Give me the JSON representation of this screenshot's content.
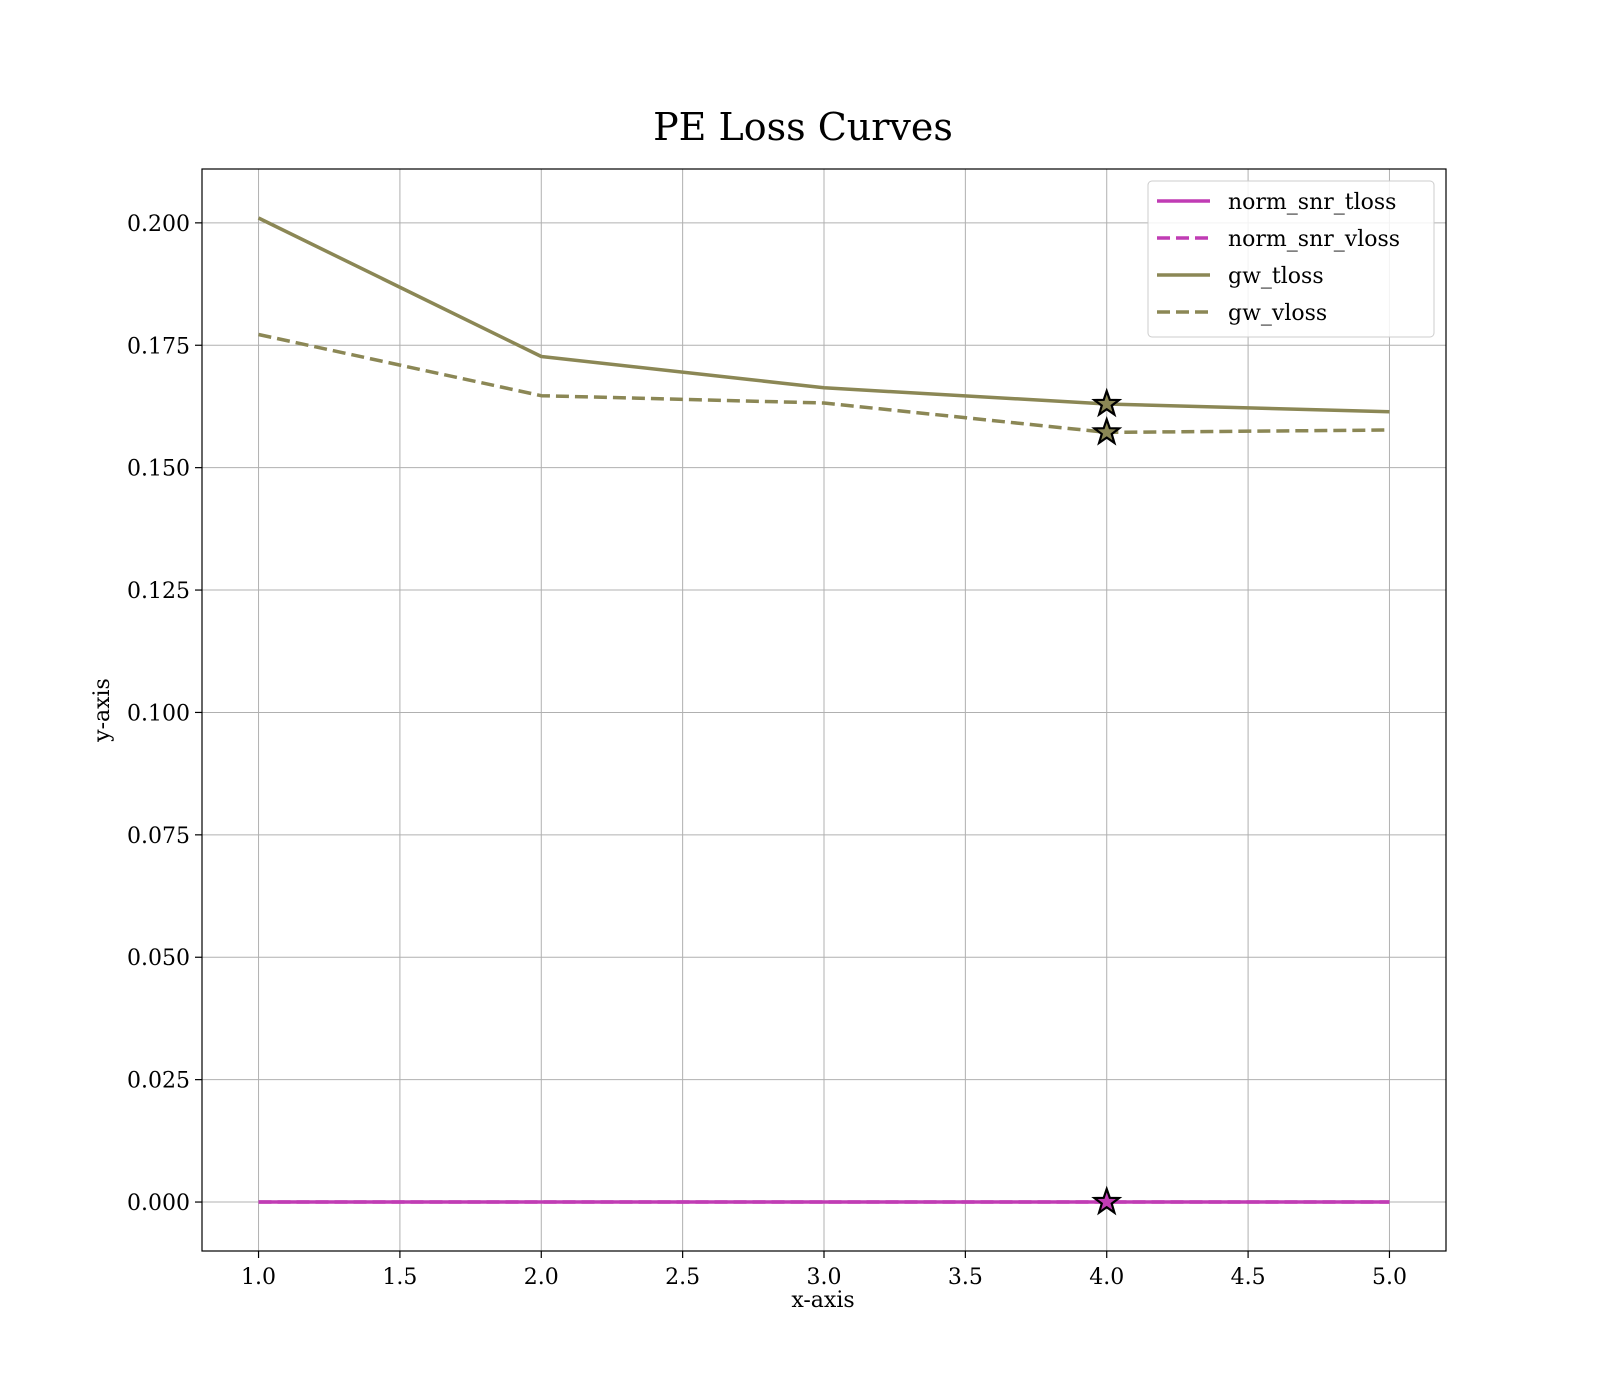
{
  "chart_data": {
    "type": "line",
    "title": "PE Loss Curves",
    "xlabel": "x-axis",
    "ylabel": "y-axis",
    "xlim": [
      0.8,
      5.2
    ],
    "ylim": [
      -0.01,
      0.211
    ],
    "xticks": [
      1.0,
      1.5,
      2.0,
      2.5,
      3.0,
      3.5,
      4.0,
      4.5,
      5.0
    ],
    "xtick_labels": [
      "1.0",
      "1.5",
      "2.0",
      "2.5",
      "3.0",
      "3.5",
      "4.0",
      "4.5",
      "5.0"
    ],
    "yticks": [
      0.0,
      0.025,
      0.05,
      0.075,
      0.1,
      0.125,
      0.15,
      0.175,
      0.2
    ],
    "ytick_labels": [
      "0.000",
      "0.025",
      "0.050",
      "0.075",
      "0.100",
      "0.125",
      "0.150",
      "0.175",
      "0.200"
    ],
    "grid": true,
    "legend_position": "top-right",
    "x": [
      1,
      2,
      3,
      4,
      5
    ],
    "series": [
      {
        "name": "norm_snr_tloss",
        "values": [
          0.0,
          0.0,
          0.0,
          0.0,
          0.0
        ],
        "color": "#c03cb4",
        "style": "solid"
      },
      {
        "name": "norm_snr_vloss",
        "values": [
          0.0,
          0.0,
          0.0,
          0.0,
          0.0
        ],
        "color": "#c03cb4",
        "style": "dashed"
      },
      {
        "name": "gw_tloss",
        "values": [
          0.201,
          0.1727,
          0.1663,
          0.163,
          0.1614
        ],
        "color": "#8b8755",
        "style": "solid"
      },
      {
        "name": "gw_vloss",
        "values": [
          0.1772,
          0.1647,
          0.1632,
          0.1572,
          0.1577
        ],
        "color": "#8b8755",
        "style": "dashed"
      }
    ],
    "markers": [
      {
        "series": "gw_tloss",
        "x": 4,
        "y": 0.163,
        "shape": "star"
      },
      {
        "series": "gw_vloss",
        "x": 4,
        "y": 0.1572,
        "shape": "star"
      },
      {
        "series": "norm_snr_vloss",
        "x": 4,
        "y": 0.0,
        "shape": "star"
      }
    ]
  }
}
